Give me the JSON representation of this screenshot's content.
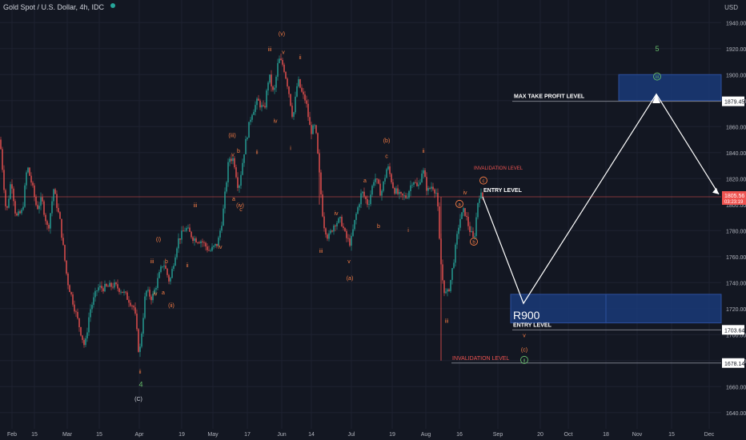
{
  "header": {
    "symbol": "Gold Spot / U.S. Dollar, 4h, IDC",
    "currency": "USD"
  },
  "colors": {
    "background": "#131722",
    "up": "#26a69a",
    "down": "#ef5350",
    "wave": "#f57c44",
    "wave_green": "#66bb6a",
    "grid": "#1e2230",
    "projection": "#ffffff",
    "box": "#1a3a78"
  },
  "chart_data": {
    "type": "candlestick",
    "instrument": "Gold Spot / U.S. Dollar",
    "timeframe": "4h",
    "ylim": [
      1630,
      1950
    ],
    "y_ticks": [
      1640,
      1660,
      1680,
      1700,
      1720,
      1740,
      1760,
      1780,
      1800,
      1820,
      1840,
      1860,
      1880,
      1900,
      1920,
      1940
    ],
    "x_ticks": [
      "Feb",
      "15",
      "Mar",
      "15",
      "Apr",
      "19",
      "May",
      "17",
      "Jun",
      "14",
      "Jul",
      "19",
      "Aug",
      "16",
      "Sep",
      "20",
      "Oct",
      "18",
      "Nov",
      "15",
      "Dec"
    ],
    "price_path": [
      [
        0,
        1850
      ],
      [
        8,
        1792
      ],
      [
        14,
        1820
      ],
      [
        20,
        1790
      ],
      [
        28,
        1795
      ],
      [
        34,
        1830
      ],
      [
        40,
        1815
      ],
      [
        46,
        1797
      ],
      [
        52,
        1804
      ],
      [
        60,
        1780
      ],
      [
        67,
        1812
      ],
      [
        75,
        1787
      ],
      [
        84,
        1742
      ],
      [
        95,
        1716
      ],
      [
        106,
        1690
      ],
      [
        112,
        1718
      ],
      [
        122,
        1736
      ],
      [
        132,
        1736
      ],
      [
        142,
        1738
      ],
      [
        152,
        1734
      ],
      [
        162,
        1726
      ],
      [
        168,
        1720
      ],
      [
        174,
        1683
      ],
      [
        182,
        1734
      ],
      [
        190,
        1728
      ],
      [
        196,
        1740
      ],
      [
        204,
        1756
      ],
      [
        212,
        1740
      ],
      [
        222,
        1772
      ],
      [
        232,
        1782
      ],
      [
        242,
        1774
      ],
      [
        252,
        1772
      ],
      [
        262,
        1764
      ],
      [
        272,
        1770
      ],
      [
        278,
        1790
      ],
      [
        286,
        1836
      ],
      [
        292,
        1835
      ],
      [
        298,
        1812
      ],
      [
        306,
        1845
      ],
      [
        314,
        1870
      ],
      [
        322,
        1880
      ],
      [
        330,
        1872
      ],
      [
        336,
        1900
      ],
      [
        342,
        1884
      ],
      [
        348,
        1912
      ],
      [
        354,
        1907
      ],
      [
        360,
        1890
      ],
      [
        366,
        1866
      ],
      [
        372,
        1896
      ],
      [
        378,
        1884
      ],
      [
        382,
        1880
      ],
      [
        388,
        1856
      ],
      [
        394,
        1860
      ],
      [
        398,
        1830
      ],
      [
        404,
        1786
      ],
      [
        410,
        1774
      ],
      [
        418,
        1786
      ],
      [
        426,
        1788
      ],
      [
        432,
        1775
      ],
      [
        438,
        1770
      ],
      [
        444,
        1790
      ],
      [
        452,
        1810
      ],
      [
        460,
        1800
      ],
      [
        468,
        1822
      ],
      [
        476,
        1808
      ],
      [
        484,
        1830
      ],
      [
        492,
        1812
      ],
      [
        500,
        1806
      ],
      [
        508,
        1806
      ],
      [
        516,
        1820
      ],
      [
        522,
        1812
      ],
      [
        528,
        1828
      ],
      [
        534,
        1810
      ],
      [
        540,
        1815
      ],
      [
        546,
        1808
      ],
      [
        550,
        1760
      ],
      [
        554,
        1736
      ],
      [
        558,
        1730
      ],
      [
        562,
        1738
      ],
      [
        568,
        1762
      ],
      [
        574,
        1788
      ],
      [
        580,
        1796
      ],
      [
        586,
        1782
      ],
      [
        592,
        1772
      ],
      [
        598,
        1808
      ],
      [
        603,
        1806
      ]
    ],
    "projection_path": [
      [
        603,
        1806
      ],
      [
        654,
        1724
      ],
      [
        820,
        1885
      ],
      [
        898,
        1808
      ]
    ],
    "levels": [
      {
        "label": "MAX TAKE PROFIT LEVEL",
        "price": 1879.45,
        "tag": "1879.45"
      },
      {
        "label": "ENTRY LEVEL",
        "price": 1703.64,
        "tag": "1703.64"
      },
      {
        "label": "INVALIDATION LEVEL",
        "price": 1678.14,
        "tag": "1678.14"
      },
      {
        "label": "ENTRY LEVEL",
        "price": 1806,
        "tag": ""
      },
      {
        "label": "INVALIDATION LEVEL",
        "price": 1822,
        "tag": ""
      }
    ],
    "current_price": {
      "value": "1805.56",
      "timer": "03:23:19"
    },
    "zones": [
      {
        "name": "take-profit-zone",
        "x0": 773,
        "x1": 901,
        "y0": 1880,
        "y1": 1900
      },
      {
        "name": "entry-zone",
        "x0": 638,
        "x1": 901,
        "y0": 1709,
        "y1": 1731
      }
    ],
    "box_label": "R900",
    "wave_labels": [
      {
        "text": "5",
        "x": 821,
        "y": 1918,
        "color": "green"
      },
      {
        "text": "(v)",
        "x": 352,
        "y": 1930,
        "color": "orange"
      },
      {
        "text": "iii",
        "x": 337,
        "y": 1918,
        "color": "orange"
      },
      {
        "text": "ii",
        "x": 375,
        "y": 1912,
        "color": "orange"
      },
      {
        "text": "v",
        "x": 354,
        "y": 1916,
        "color": "orange"
      },
      {
        "text": "iv",
        "x": 344,
        "y": 1863,
        "color": "orange"
      },
      {
        "text": "i",
        "x": 363,
        "y": 1842,
        "color": "orange"
      },
      {
        "text": "ii",
        "x": 321,
        "y": 1839,
        "color": "orange"
      },
      {
        "text": "(iii)",
        "x": 290,
        "y": 1852,
        "color": "orange"
      },
      {
        "text": "b",
        "x": 298,
        "y": 1840,
        "color": "orange"
      },
      {
        "text": "v",
        "x": 291,
        "y": 1837,
        "color": "orange"
      },
      {
        "text": "a",
        "x": 292,
        "y": 1803,
        "color": "orange"
      },
      {
        "text": "(iv)",
        "x": 300,
        "y": 1798,
        "color": "orange"
      },
      {
        "text": "c",
        "x": 301,
        "y": 1795,
        "color": "orange"
      },
      {
        "text": "iii",
        "x": 244,
        "y": 1798,
        "color": "orange"
      },
      {
        "text": "iv",
        "x": 275,
        "y": 1766,
        "color": "orange"
      },
      {
        "text": "(i)",
        "x": 198,
        "y": 1772,
        "color": "orange"
      },
      {
        "text": "iii",
        "x": 190,
        "y": 1755,
        "color": "orange"
      },
      {
        "text": "b",
        "x": 208,
        "y": 1755,
        "color": "orange"
      },
      {
        "text": "ii",
        "x": 234,
        "y": 1752,
        "color": "orange"
      },
      {
        "text": "iv",
        "x": 194,
        "y": 1730,
        "color": "orange"
      },
      {
        "text": "a",
        "x": 204,
        "y": 1731,
        "color": "orange"
      },
      {
        "text": "(ii)",
        "x": 214,
        "y": 1721,
        "color": "orange"
      },
      {
        "text": "ii",
        "x": 175,
        "y": 1670,
        "color": "orange"
      },
      {
        "text": "4",
        "x": 176,
        "y": 1660,
        "color": "green"
      },
      {
        "text": "(C)",
        "x": 173,
        "y": 1649,
        "color": "white"
      },
      {
        "text": "(b)",
        "x": 483,
        "y": 1848,
        "color": "orange"
      },
      {
        "text": "c",
        "x": 483,
        "y": 1836,
        "color": "orange"
      },
      {
        "text": "a",
        "x": 456,
        "y": 1817,
        "color": "orange"
      },
      {
        "text": "ii",
        "x": 529,
        "y": 1840,
        "color": "orange"
      },
      {
        "text": "iv",
        "x": 420,
        "y": 1792,
        "color": "orange"
      },
      {
        "text": "b",
        "x": 473,
        "y": 1782,
        "color": "orange"
      },
      {
        "text": "i",
        "x": 510,
        "y": 1779,
        "color": "orange"
      },
      {
        "text": "iii",
        "x": 401,
        "y": 1763,
        "color": "orange"
      },
      {
        "text": "v",
        "x": 436,
        "y": 1755,
        "color": "orange"
      },
      {
        "text": "(a)",
        "x": 437,
        "y": 1742,
        "color": "orange"
      },
      {
        "text": "iii",
        "x": 558,
        "y": 1709,
        "color": "orange"
      },
      {
        "text": "iv",
        "x": 581,
        "y": 1808,
        "color": "orange"
      },
      {
        "text": "v",
        "x": 655,
        "y": 1698,
        "color": "orange"
      },
      {
        "text": "(c)",
        "x": 655,
        "y": 1687,
        "color": "orange"
      }
    ],
    "circled_labels": [
      {
        "text": "c",
        "x": 604,
        "y": 1817,
        "color": "orange"
      },
      {
        "text": "a",
        "x": 574,
        "y": 1799,
        "color": "orange"
      },
      {
        "text": "b",
        "x": 592,
        "y": 1770,
        "color": "orange"
      },
      {
        "text": "ii",
        "x": 655,
        "y": 1679,
        "color": "green"
      },
      {
        "text": "iii",
        "x": 821,
        "y": 1897,
        "color": "green"
      }
    ]
  }
}
